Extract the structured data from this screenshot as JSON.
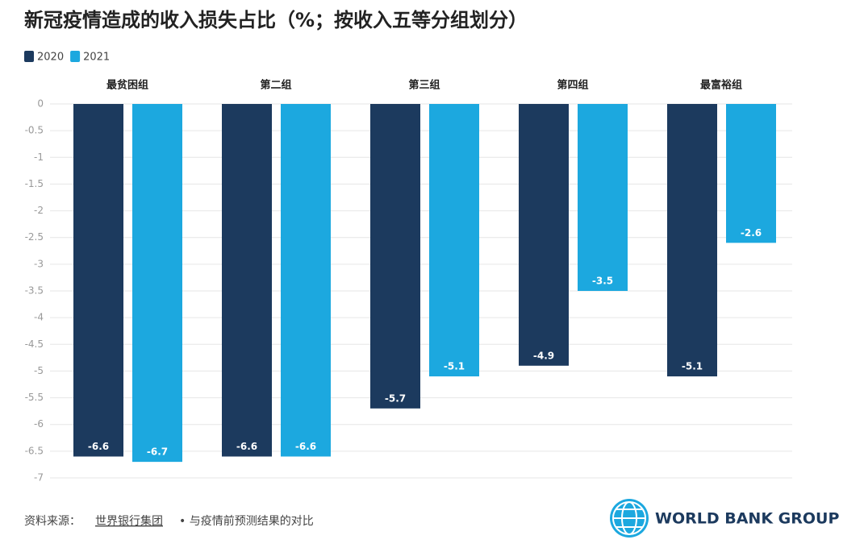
{
  "chart_data": {
    "type": "bar",
    "title": "新冠疫情造成的收入损失占比（%；按收入五等分组划分）",
    "categories": [
      "最贫困组",
      "第二组",
      "第三组",
      "第四组",
      "最富裕组"
    ],
    "series": [
      {
        "name": "2020",
        "color": "#1c3a5e",
        "values": [
          -6.6,
          -6.6,
          -5.7,
          -4.9,
          -5.1
        ]
      },
      {
        "name": "2021",
        "color": "#1ca8df",
        "values": [
          -6.7,
          -6.6,
          -5.1,
          -3.5,
          -2.6
        ]
      }
    ],
    "ylim": [
      0,
      -7
    ],
    "yticks": [
      0,
      -0.5,
      -1,
      -1.5,
      -2,
      -2.5,
      -3,
      -3.5,
      -4,
      -4.5,
      -5,
      -5.5,
      -6,
      -6.5,
      -7
    ],
    "grid": true
  },
  "footer": {
    "source_label": "资料来源：",
    "source_link": "世界银行集团",
    "source_text": "• 与疫情前预测结果的对比",
    "logo_text": "WORLD BANK GROUP"
  }
}
